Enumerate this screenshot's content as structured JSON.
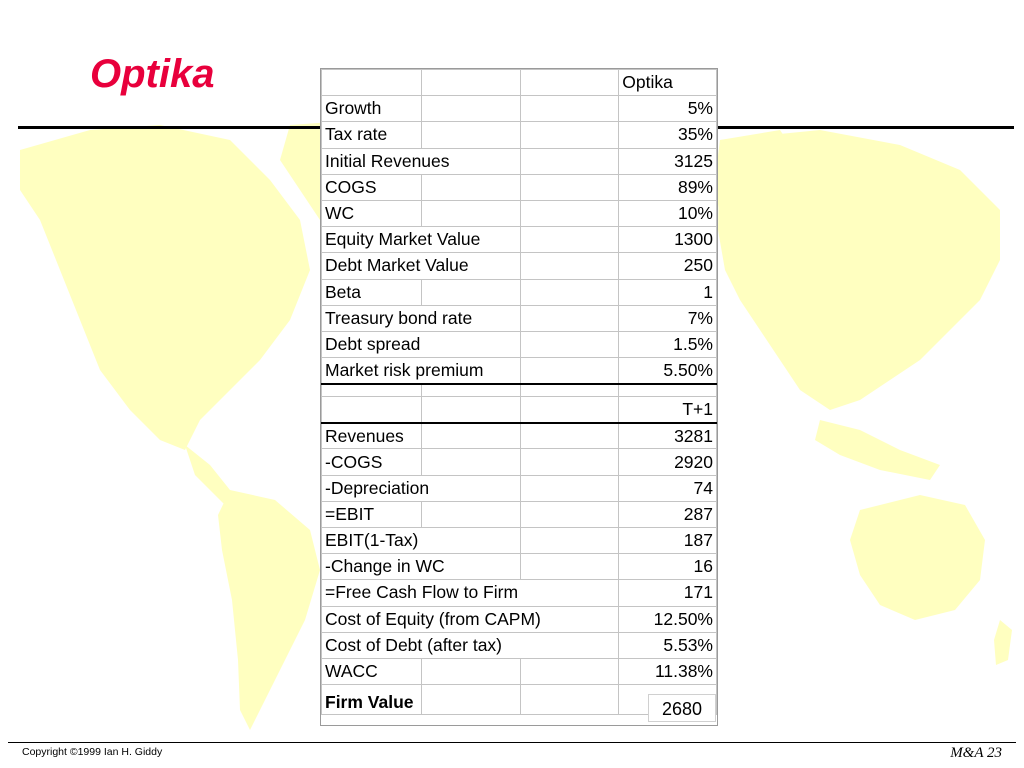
{
  "slide": {
    "title": "Optika",
    "footer_left": "Copyright ©1999 Ian H. Giddy",
    "footer_right": "M&A 23"
  },
  "colors": {
    "title": "#e8003c",
    "map": "#ffffc0"
  },
  "inputs": {
    "header": "Optika",
    "rows": [
      {
        "label": "Growth",
        "value": "5%"
      },
      {
        "label": "Tax rate",
        "value": "35%"
      },
      {
        "label": "Initial Revenues",
        "value": "3125"
      },
      {
        "label": "COGS",
        "value": "89%"
      },
      {
        "label": "WC",
        "value": "10%"
      },
      {
        "label": "Equity Market Value",
        "value": "1300"
      },
      {
        "label": "Debt Market Value",
        "value": "250"
      },
      {
        "label": "Beta",
        "value": "1"
      },
      {
        "label": "Treasury bond rate",
        "value": "7%"
      },
      {
        "label": "Debt spread",
        "value": "1.5%"
      },
      {
        "label": "Market risk premium",
        "value": "5.50%"
      }
    ]
  },
  "projection": {
    "header": "T+1",
    "rows": [
      {
        "label": "Revenues",
        "value": "3281"
      },
      {
        "label": "-COGS",
        "value": "2920"
      },
      {
        "label": "-Depreciation",
        "value": "74"
      },
      {
        "label": "=EBIT",
        "value": "287"
      },
      {
        "label": "EBIT(1-Tax)",
        "value": "187"
      },
      {
        "label": "-Change in WC",
        "value": "16"
      },
      {
        "label": "=Free Cash Flow to Firm",
        "value": "171"
      },
      {
        "label": "Cost of Equity (from CAPM)",
        "value": "12.50%"
      },
      {
        "label": "Cost of Debt (after tax)",
        "value": "5.53%"
      },
      {
        "label": "WACC",
        "value": "11.38%"
      }
    ]
  },
  "firm_value": {
    "label": "Firm Value",
    "value": "2680"
  }
}
